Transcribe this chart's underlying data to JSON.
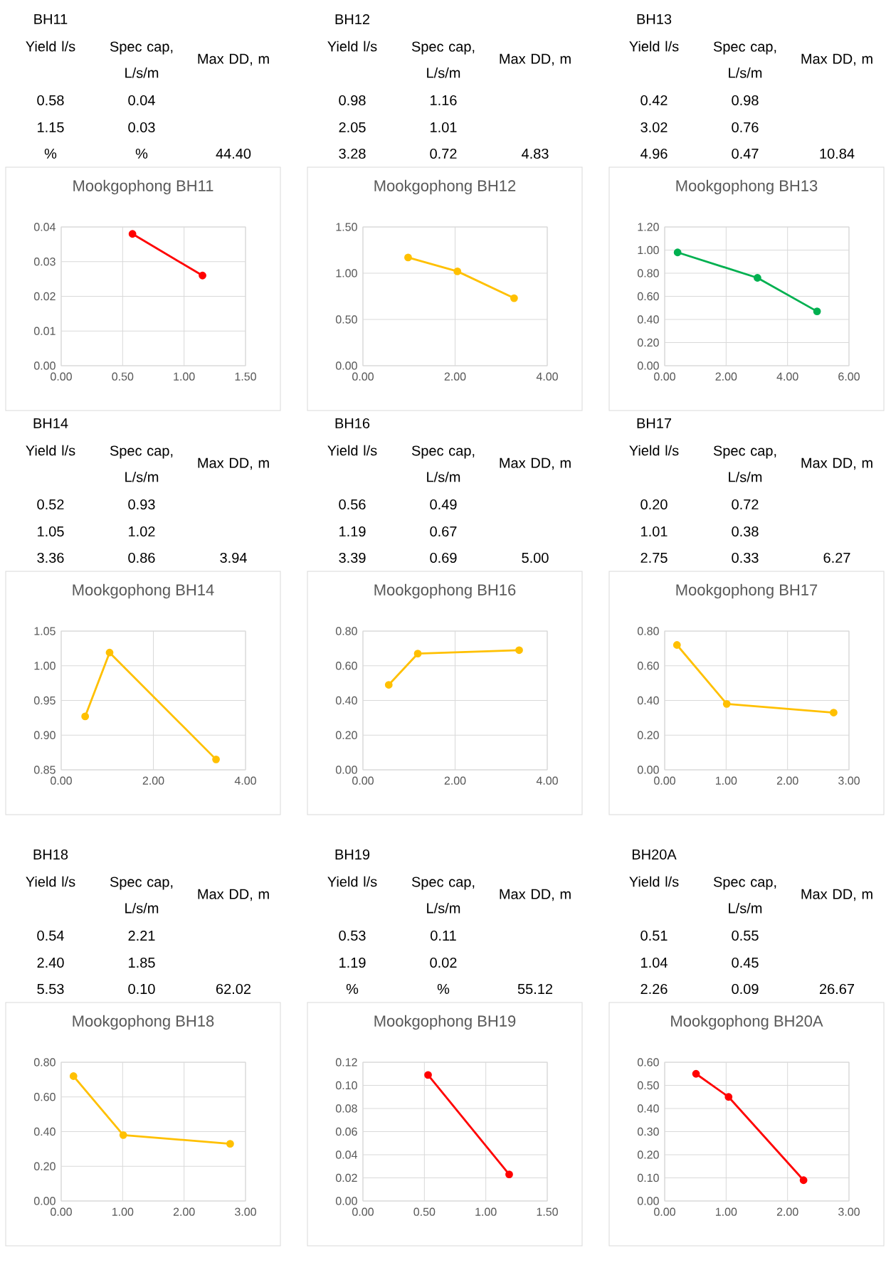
{
  "chart_data": [
    {
      "type": "line",
      "title": "Mookgophong BH11",
      "x": [
        0.58,
        1.15
      ],
      "values": [
        0.038,
        0.026
      ],
      "color": "#ff0000",
      "marker": "circle",
      "grid": true,
      "xlim": [
        0,
        1.5
      ],
      "ylim": [
        0,
        0.04
      ],
      "xticks": [
        {
          "value": 0,
          "label": "0.00"
        },
        {
          "value": 0.5,
          "label": "0.50"
        },
        {
          "value": 1,
          "label": "1.00"
        },
        {
          "value": 1.5,
          "label": "1.50"
        }
      ],
      "yticks": [
        {
          "value": 0,
          "label": "0.00"
        },
        {
          "value": 0.01,
          "label": "0.01"
        },
        {
          "value": 0.02,
          "label": "0.02"
        },
        {
          "value": 0.03,
          "label": "0.03"
        },
        {
          "value": 0.04,
          "label": "0.04"
        }
      ],
      "annotations": [
        "BH11",
        "Yield l/s",
        "Spec cap, L/s/m",
        "Max DD, m",
        "0.58",
        "0.04",
        "1.15",
        "0.03",
        "%",
        "%",
        "44.40"
      ]
    },
    {
      "type": "line",
      "title": "Mookgophong BH12",
      "x": [
        0.98,
        2.05,
        3.28
      ],
      "values": [
        1.17,
        1.02,
        0.73
      ],
      "color": "#ffc000",
      "marker": "circle",
      "grid": true,
      "xlim": [
        0,
        4
      ],
      "ylim": [
        0,
        1.5
      ],
      "xticks": [
        {
          "value": 0,
          "label": "0.00"
        },
        {
          "value": 2,
          "label": "2.00"
        },
        {
          "value": 4,
          "label": "4.00"
        }
      ],
      "yticks": [
        {
          "value": 0,
          "label": "0.00"
        },
        {
          "value": 0.5,
          "label": "0.50"
        },
        {
          "value": 1,
          "label": "1.00"
        },
        {
          "value": 1.5,
          "label": "1.50"
        }
      ],
      "annotations": [
        "BH12",
        "Yield l/s",
        "Spec cap, L/s/m",
        "Max DD, m",
        "0.98",
        "1.16",
        "2.05",
        "1.01",
        "3.28",
        "0.72",
        "4.83"
      ]
    },
    {
      "type": "line",
      "title": "Mookgophong BH13",
      "x": [
        0.42,
        3.02,
        4.96
      ],
      "values": [
        0.98,
        0.76,
        0.47
      ],
      "color": "#00b050",
      "marker": "circle",
      "grid": true,
      "xlim": [
        0,
        6
      ],
      "ylim": [
        0,
        1.2
      ],
      "xticks": [
        {
          "value": 0,
          "label": "0.00"
        },
        {
          "value": 2,
          "label": "2.00"
        },
        {
          "value": 4,
          "label": "4.00"
        },
        {
          "value": 6,
          "label": "6.00"
        }
      ],
      "yticks": [
        {
          "value": 0,
          "label": "0.00"
        },
        {
          "value": 0.2,
          "label": "0.20"
        },
        {
          "value": 0.4,
          "label": "0.40"
        },
        {
          "value": 0.6,
          "label": "0.60"
        },
        {
          "value": 0.8,
          "label": "0.80"
        },
        {
          "value": 1,
          "label": "1.00"
        },
        {
          "value": 1.2,
          "label": "1.20"
        }
      ],
      "annotations": [
        "BH13",
        "Yield l/s",
        "Spec cap, L/s/m",
        "Max DD, m",
        "0.42",
        "0.98",
        "3.02",
        "0.76",
        "4.96",
        "0.47",
        "10.84"
      ]
    },
    {
      "type": "line",
      "title": "Mookgophong BH14",
      "x": [
        0.52,
        1.05,
        3.36
      ],
      "values": [
        0.927,
        1.019,
        0.865
      ],
      "color": "#ffc000",
      "marker": "circle",
      "grid": true,
      "xlim": [
        0,
        4
      ],
      "ylim": [
        0.85,
        1.05
      ],
      "xticks": [
        {
          "value": 0,
          "label": "0.00"
        },
        {
          "value": 2,
          "label": "2.00"
        },
        {
          "value": 4,
          "label": "4.00"
        }
      ],
      "yticks": [
        {
          "value": 0.85,
          "label": "0.85"
        },
        {
          "value": 0.9,
          "label": "0.90"
        },
        {
          "value": 0.95,
          "label": "0.95"
        },
        {
          "value": 1,
          "label": "1.00"
        },
        {
          "value": 1.05,
          "label": "1.05"
        }
      ],
      "annotations": [
        "BH14",
        "Yield l/s",
        "Spec cap, L/s/m",
        "Max DD, m",
        "0.52",
        "0.93",
        "1.05",
        "1.02",
        "3.36",
        "0.86",
        "3.94"
      ]
    },
    {
      "type": "line",
      "title": "Mookgophong BH16",
      "x": [
        0.56,
        1.19,
        3.39
      ],
      "values": [
        0.49,
        0.67,
        0.69
      ],
      "color": "#ffc000",
      "marker": "circle",
      "grid": true,
      "xlim": [
        0,
        4
      ],
      "ylim": [
        0,
        0.8
      ],
      "xticks": [
        {
          "value": 0,
          "label": "0.00"
        },
        {
          "value": 2,
          "label": "2.00"
        },
        {
          "value": 4,
          "label": "4.00"
        }
      ],
      "yticks": [
        {
          "value": 0,
          "label": "0.00"
        },
        {
          "value": 0.2,
          "label": "0.20"
        },
        {
          "value": 0.4,
          "label": "0.40"
        },
        {
          "value": 0.6,
          "label": "0.60"
        },
        {
          "value": 0.8,
          "label": "0.80"
        }
      ],
      "annotations": [
        "BH16",
        "Yield l/s",
        "Spec cap, L/s/m",
        "Max DD, m",
        "0.56",
        "0.49",
        "1.19",
        "0.67",
        "3.39",
        "0.69",
        "5.00"
      ]
    },
    {
      "type": "line",
      "title": "Mookgophong BH17",
      "x": [
        0.2,
        1.01,
        2.75
      ],
      "values": [
        0.72,
        0.38,
        0.33
      ],
      "color": "#ffc000",
      "marker": "circle",
      "grid": true,
      "xlim": [
        0,
        3
      ],
      "ylim": [
        0,
        0.8
      ],
      "xticks": [
        {
          "value": 0,
          "label": "0.00"
        },
        {
          "value": 1,
          "label": "1.00"
        },
        {
          "value": 2,
          "label": "2.00"
        },
        {
          "value": 3,
          "label": "3.00"
        }
      ],
      "yticks": [
        {
          "value": 0,
          "label": "0.00"
        },
        {
          "value": 0.2,
          "label": "0.20"
        },
        {
          "value": 0.4,
          "label": "0.40"
        },
        {
          "value": 0.6,
          "label": "0.60"
        },
        {
          "value": 0.8,
          "label": "0.80"
        }
      ],
      "annotations": [
        "BH17",
        "Yield l/s",
        "Spec cap, L/s/m",
        "Max DD, m",
        "0.20",
        "0.72",
        "1.01",
        "0.38",
        "2.75",
        "0.33",
        "6.27"
      ]
    },
    {
      "type": "line",
      "title": "Mookgophong BH18",
      "x": [
        0.2,
        1.01,
        2.75
      ],
      "values": [
        0.72,
        0.38,
        0.33
      ],
      "color": "#ffc000",
      "marker": "circle",
      "grid": true,
      "xlim": [
        0,
        3
      ],
      "ylim": [
        0,
        0.8
      ],
      "xticks": [
        {
          "value": 0,
          "label": "0.00"
        },
        {
          "value": 1,
          "label": "1.00"
        },
        {
          "value": 2,
          "label": "2.00"
        },
        {
          "value": 3,
          "label": "3.00"
        }
      ],
      "yticks": [
        {
          "value": 0,
          "label": "0.00"
        },
        {
          "value": 0.2,
          "label": "0.20"
        },
        {
          "value": 0.4,
          "label": "0.40"
        },
        {
          "value": 0.6,
          "label": "0.60"
        },
        {
          "value": 0.8,
          "label": "0.80"
        }
      ],
      "annotations": [
        "BH18",
        "Yield l/s",
        "Spec cap, L/s/m",
        "Max DD, m",
        "0.54",
        "2.21",
        "2.40",
        "1.85",
        "5.53",
        "0.10",
        "62.02"
      ]
    },
    {
      "type": "line",
      "title": "Mookgophong BH19",
      "x": [
        0.53,
        1.19
      ],
      "values": [
        0.109,
        0.023
      ],
      "color": "#ff0000",
      "marker": "circle",
      "grid": true,
      "xlim": [
        0,
        1.5
      ],
      "ylim": [
        0,
        0.12
      ],
      "xticks": [
        {
          "value": 0,
          "label": "0.00"
        },
        {
          "value": 0.5,
          "label": "0.50"
        },
        {
          "value": 1,
          "label": "1.00"
        },
        {
          "value": 1.5,
          "label": "1.50"
        }
      ],
      "yticks": [
        {
          "value": 0,
          "label": "0.00"
        },
        {
          "value": 0.02,
          "label": "0.02"
        },
        {
          "value": 0.04,
          "label": "0.04"
        },
        {
          "value": 0.06,
          "label": "0.06"
        },
        {
          "value": 0.08,
          "label": "0.08"
        },
        {
          "value": 0.1,
          "label": "0.10"
        },
        {
          "value": 0.12,
          "label": "0.12"
        }
      ],
      "annotations": [
        "BH19",
        "Yield l/s",
        "Spec cap, L/s/m",
        "Max DD, m",
        "0.53",
        "0.11",
        "1.19",
        "0.02",
        "%",
        "%",
        "55.12"
      ]
    },
    {
      "type": "line",
      "title": "Mookgophong BH20A",
      "x": [
        0.51,
        1.04,
        2.26
      ],
      "values": [
        0.55,
        0.45,
        0.09
      ],
      "color": "#ff0000",
      "marker": "circle",
      "grid": true,
      "xlim": [
        0,
        3
      ],
      "ylim": [
        0,
        0.6
      ],
      "xticks": [
        {
          "value": 0,
          "label": "0.00"
        },
        {
          "value": 1,
          "label": "1.00"
        },
        {
          "value": 2,
          "label": "2.00"
        },
        {
          "value": 3,
          "label": "3.00"
        }
      ],
      "yticks": [
        {
          "value": 0,
          "label": "0.00"
        },
        {
          "value": 0.1,
          "label": "0.10"
        },
        {
          "value": 0.2,
          "label": "0.20"
        },
        {
          "value": 0.3,
          "label": "0.30"
        },
        {
          "value": 0.4,
          "label": "0.40"
        },
        {
          "value": 0.5,
          "label": "0.50"
        },
        {
          "value": 0.6,
          "label": "0.60"
        }
      ],
      "annotations": [
        "BH20A",
        "Yield l/s",
        "Spec cap, L/s/m",
        "Max DD, m",
        "0.51",
        "0.55",
        "1.04",
        "0.45",
        "2.26",
        "0.09",
        "26.67"
      ]
    }
  ]
}
